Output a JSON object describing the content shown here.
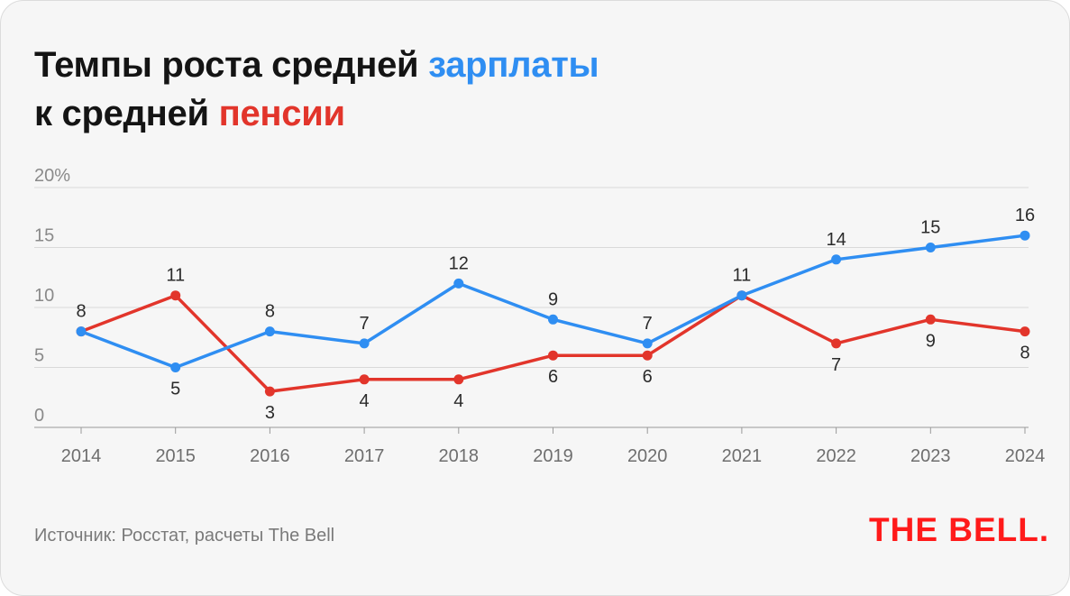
{
  "title": {
    "line1_prefix": "Темпы роста средней",
    "line1_highlight": "зарплаты",
    "line2_prefix": "к средней",
    "line2_highlight": "пенсии"
  },
  "source": "Источник: Росстат, расчеты The Bell",
  "logo": "THE BELL.",
  "colors": {
    "wage": "#2f8ef2",
    "pension": "#e2352b",
    "logo": "#ff1a1a"
  },
  "chart_data": {
    "type": "line",
    "x": [
      "2014",
      "2015",
      "2016",
      "2017",
      "2018",
      "2019",
      "2020",
      "2021",
      "2022",
      "2023",
      "2024"
    ],
    "ylim": [
      0,
      20
    ],
    "ytick_labels": [
      "0",
      "5",
      "10",
      "15",
      "20%"
    ],
    "yticks": [
      0,
      5,
      10,
      15,
      20
    ],
    "grid": true,
    "series": [
      {
        "key": "wage",
        "color": "#2f8ef2",
        "values": [
          8,
          5,
          8,
          7,
          12,
          9,
          7,
          11,
          14,
          15,
          16
        ]
      },
      {
        "key": "pension",
        "color": "#e2352b",
        "values": [
          8,
          11,
          3,
          4,
          4,
          6,
          6,
          11,
          7,
          9,
          8
        ]
      }
    ],
    "data_labels": [
      {
        "x": "2014",
        "text": "8"
      },
      {
        "x": "2015",
        "text": "11"
      },
      {
        "x": "2015",
        "text": "5"
      },
      {
        "x": "2016",
        "text": "8"
      },
      {
        "x": "2016",
        "text": "3"
      },
      {
        "x": "2017",
        "text": "7"
      },
      {
        "x": "2017",
        "text": "4"
      },
      {
        "x": "2018",
        "text": "12"
      },
      {
        "x": "2018",
        "text": "4"
      },
      {
        "x": "2019",
        "text": "9"
      },
      {
        "x": "2019",
        "text": "6"
      },
      {
        "x": "2020",
        "text": "7"
      },
      {
        "x": "2020",
        "text": "6"
      },
      {
        "x": "2021",
        "text": "11"
      },
      {
        "x": "2022",
        "text": "14"
      },
      {
        "x": "2022",
        "text": "7"
      },
      {
        "x": "2023",
        "text": "15"
      },
      {
        "x": "2023",
        "text": "9"
      },
      {
        "x": "2024",
        "text": "16"
      },
      {
        "x": "2024",
        "text": "8"
      }
    ]
  }
}
